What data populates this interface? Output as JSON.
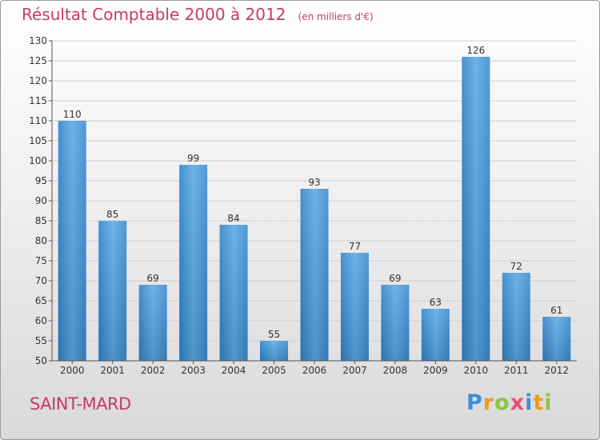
{
  "header": {
    "title": "Résultat Comptable 2000 à 2012",
    "unit": "(en milliers d'€)"
  },
  "footer": {
    "commune": "SAINT-MARD",
    "brand": "Proxiti",
    "brand_letters": [
      {
        "char": "P",
        "color": "#3a8fd8"
      },
      {
        "char": "r",
        "color": "#f29a1d"
      },
      {
        "char": "o",
        "color": "#8dc63f"
      },
      {
        "char": "x",
        "color": "#e94e77"
      },
      {
        "char": "i",
        "color": "#3a8fd8"
      },
      {
        "char": "t",
        "color": "#f29a1d"
      },
      {
        "char": "i",
        "color": "#8dc63f"
      }
    ]
  },
  "colors": {
    "bar": "#3f93d8",
    "bar_light": "#5daee8",
    "title": "#c63a6a"
  },
  "chart_data": {
    "type": "bar",
    "categories": [
      "2000",
      "2001",
      "2002",
      "2003",
      "2004",
      "2005",
      "2006",
      "2007",
      "2008",
      "2009",
      "2010",
      "2011",
      "2012"
    ],
    "values": [
      110,
      85,
      69,
      99,
      84,
      55,
      93,
      77,
      69,
      63,
      126,
      72,
      61
    ],
    "ylim": [
      50,
      130
    ],
    "yticks": [
      50,
      55,
      60,
      65,
      70,
      75,
      80,
      85,
      90,
      95,
      100,
      105,
      110,
      115,
      120,
      125,
      130
    ],
    "grid": true,
    "data_labels": true
  }
}
